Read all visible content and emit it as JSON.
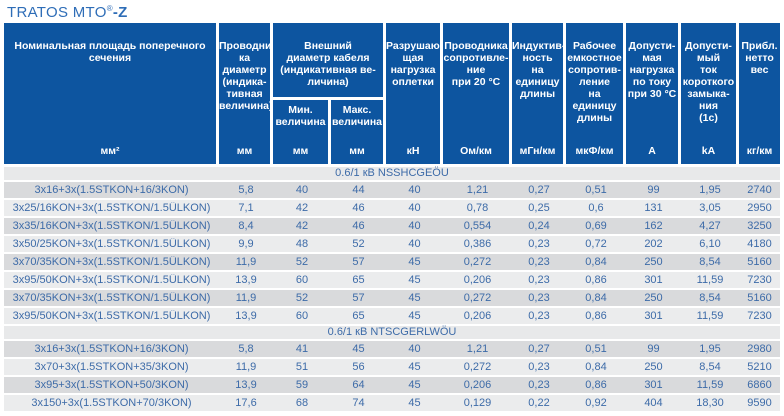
{
  "title": {
    "prefix": "TRATOS MTO",
    "reg": "®",
    "bold": "-Z"
  },
  "colors": {
    "header_bg": "#0d55a0",
    "accent_text": "#2e6db7",
    "data_text": "#3d6ba8",
    "row_dark": "#d9dadc",
    "row_light": "#ebeced",
    "section_bg": "#e8e9ea"
  },
  "table": {
    "header_cells": [
      {
        "type": "simple",
        "id": "nominal-cross-section",
        "label": "Номинальная площадь поперечного\nсечения",
        "unit": "мм²"
      },
      {
        "type": "simple",
        "id": "conductor-diameter",
        "label": "Проводни-\nка\nдиаметр\n(индика-\nтивная\nвеличина)",
        "unit": "мм"
      },
      {
        "type": "group",
        "id": "outer-cable-diameter",
        "label": "Внешний\nдиаметр кабеля\n(индикативная ве-\nличина)",
        "sub": [
          {
            "id": "min-value",
            "label": "Мин.\nвеличина",
            "unit": "мм"
          },
          {
            "id": "max-value",
            "label": "Макс.\nвеличина",
            "unit": "мм"
          }
        ]
      },
      {
        "type": "simple",
        "id": "braid-breaking-load",
        "label": "Разрушаю-\nщая\nнагрузка\nоплетки",
        "unit": "кН"
      },
      {
        "type": "simple",
        "id": "conductor-resistance-20c",
        "label": "Проводника\nсопротивле-\nние\nпри 20 °C",
        "unit": "Ом/км"
      },
      {
        "type": "simple",
        "id": "inductance-per-length",
        "label": "Индуктив-\nность\nна единицу\nдлины",
        "unit": "мГн/км"
      },
      {
        "type": "simple",
        "id": "capacitive-reactance-per-length",
        "label": "Рабочее\nемкостное\nсопротив-\nление\nна единицу\nдлины",
        "unit": "мкФ/км"
      },
      {
        "type": "simple",
        "id": "current-rating-30c",
        "label": "Допусти-\nмая\nнагрузка\nпо току\nпри 30 °C",
        "unit": "А"
      },
      {
        "type": "simple",
        "id": "short-circuit-current-1s",
        "label": "Допусти-\nмый\nток\nкороткого\nзамыка-\nния\n(1c)",
        "unit": "kA"
      },
      {
        "type": "simple",
        "id": "approx-net-weight",
        "label": "Прибл.\nнетто\nвес",
        "unit": "кг/км"
      }
    ],
    "sections": [
      {
        "header": "0.6/1 кВ NSSHCGEÖU",
        "rows": [
          [
            "3x16+3x(1.5STKON+16/3KON)",
            "5,8",
            "40",
            "44",
            "40",
            "1,21",
            "0,27",
            "0,51",
            "99",
            "1,95",
            "2740"
          ],
          [
            "3x25/16KON+3x(1.5STKON/1.5ÜLKON)",
            "7,1",
            "42",
            "46",
            "40",
            "0,78",
            "0,25",
            "0,6",
            "131",
            "3,05",
            "2950"
          ],
          [
            "3x35/16KON+3x(1.5STKON/1.5ÜLKON)",
            "8,4",
            "42",
            "46",
            "40",
            "0,554",
            "0,24",
            "0,69",
            "162",
            "4,27",
            "3250"
          ],
          [
            "3x50/25KON+3x(1.5STKON/1.5ÜLKON)",
            "9,9",
            "48",
            "52",
            "40",
            "0,386",
            "0,23",
            "0,72",
            "202",
            "6,10",
            "4180"
          ],
          [
            "3x70/35KON+3x(1.5STKON/1.5ÜLKON)",
            "11,9",
            "52",
            "57",
            "45",
            "0,272",
            "0,23",
            "0,84",
            "250",
            "8,54",
            "5160"
          ],
          [
            "3x95/50KON+3x(1.5STKON/1.5ÜLKON)",
            "13,9",
            "60",
            "65",
            "45",
            "0,206",
            "0,23",
            "0,86",
            "301",
            "11,59",
            "7230"
          ],
          [
            "3x70/35KON+3x(1.5STKON/1.5ÜLKON)",
            "11,9",
            "52",
            "57",
            "45",
            "0,272",
            "0,23",
            "0,84",
            "250",
            "8,54",
            "5160"
          ],
          [
            "3x95/50KON+3x(1.5STKON/1.5ÜLKON)",
            "13,9",
            "60",
            "65",
            "45",
            "0,206",
            "0,23",
            "0,86",
            "301",
            "11,59",
            "7230"
          ]
        ]
      },
      {
        "header": "0.6/1 кВ NTSCGERLWÖU",
        "rows": [
          [
            "3x16+3x(1.5STKON+16/3KON)",
            "5,8",
            "41",
            "45",
            "40",
            "1,21",
            "0,27",
            "0,51",
            "99",
            "1,95",
            "2980"
          ],
          [
            "3x70+3x(1.5STKON+35/3KON)",
            "11,9",
            "51",
            "56",
            "45",
            "0,272",
            "0,23",
            "0,84",
            "250",
            "8,54",
            "5210"
          ],
          [
            "3x95+3x(1.5STKON+50/3KON)",
            "13,9",
            "59",
            "64",
            "45",
            "0,206",
            "0,23",
            "0,86",
            "301",
            "11,59",
            "6860"
          ],
          [
            "3x150+3x(1.5STKON+70/3KON)",
            "17,6",
            "68",
            "74",
            "45",
            "0,129",
            "0,22",
            "0,92",
            "404",
            "18,30",
            "9590"
          ]
        ]
      }
    ]
  }
}
